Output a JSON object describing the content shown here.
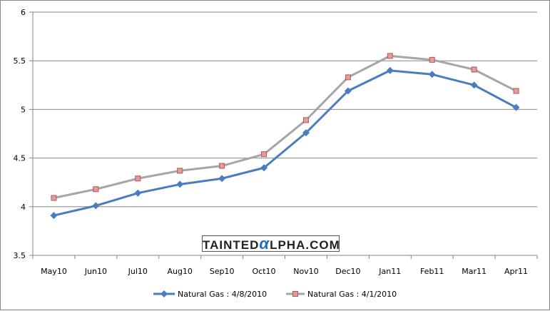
{
  "chart_data": {
    "type": "line",
    "categories": [
      "May10",
      "Jun10",
      "Jul10",
      "Aug10",
      "Sep10",
      "Oct10",
      "Nov10",
      "Dec10",
      "Jan11",
      "Feb11",
      "Mar11",
      "Apr11"
    ],
    "series": [
      {
        "name": "Natural Gas : 4/8/2010",
        "color": "#4a7ebb",
        "marker": "diamond",
        "values": [
          3.91,
          4.01,
          4.14,
          4.23,
          4.29,
          4.4,
          4.76,
          5.19,
          5.4,
          5.36,
          5.25,
          5.02
        ]
      },
      {
        "name": "Natural Gas : 4/1/2010",
        "color": "#a6a6a6",
        "marker": "square",
        "marker_fill": "#d9a0a0",
        "marker_stroke": "#c0504d",
        "values": [
          4.09,
          4.18,
          4.29,
          4.37,
          4.42,
          4.54,
          4.89,
          5.33,
          5.55,
          5.51,
          5.41,
          5.19
        ]
      }
    ],
    "ylim": [
      3.5,
      6
    ],
    "yticks": [
      "3.5",
      "4",
      "4.5",
      "5",
      "5.5",
      "6"
    ],
    "grid": true,
    "legend": "bottom",
    "title": "",
    "xlabel": "",
    "ylabel": ""
  },
  "watermark": {
    "prefix": "TAINTED",
    "alpha": "α",
    "suffix": "LPHA.COM"
  }
}
